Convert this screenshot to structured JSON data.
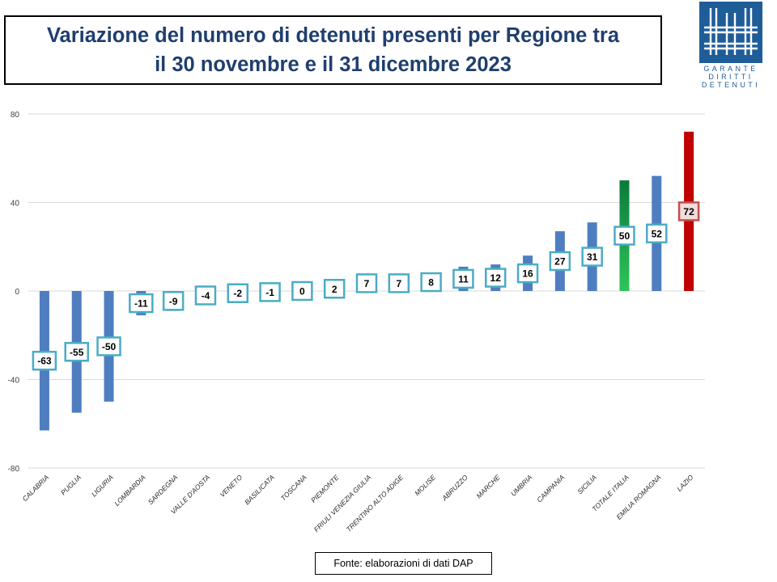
{
  "header": {
    "title_line1": "Variazione del numero di detenuti presenti per Regione tra",
    "title_line2": "il 30 novembre e il 31 dicembre 2023"
  },
  "logo": {
    "line1": "GARANTE",
    "line2": "DIRITTI",
    "line3": "DETENUTI"
  },
  "source": "Fonte: elaborazioni di dati DAP",
  "colors": {
    "bar": "#4e7ec0",
    "total_top": "#0b7a3b",
    "total_bottom": "#2ec45a",
    "lazio": "#c00000",
    "label_border": "#4bacc6",
    "lazio_label_border": "#c0504d",
    "lazio_label_fill": "#f2dcdb",
    "grid": "#d9d9d9",
    "title": "#1f3f6e",
    "logo": "#1f5d99"
  },
  "chart_data": {
    "type": "bar",
    "categories": [
      "CALABRIA",
      "PUGLIA",
      "LIGURIA",
      "LOMBARDIA",
      "SARDEGNA",
      "VALLE D'AOSTA",
      "VENETO",
      "BASILICATA",
      "TOSCANA",
      "PIEMONTE",
      "FRIULI VENEZIA GIULIA",
      "TRENTINO ALTO ADIGE",
      "MOLISE",
      "ABRUZZO",
      "MARCHE",
      "UMBRIA",
      "CAMPANIA",
      "SICILIA",
      "TOTALE ITALIA",
      "EMILIA ROMAGNA",
      "LAZIO"
    ],
    "values": [
      -63,
      -55,
      -50,
      -11,
      -9,
      -4,
      -2,
      -1,
      0,
      2,
      7,
      7,
      8,
      11,
      12,
      16,
      27,
      31,
      50,
      52,
      72
    ],
    "ylim": [
      -80,
      80
    ],
    "yticks": [
      80,
      40,
      0,
      -40,
      -80
    ],
    "grid": true,
    "legend": "none"
  }
}
